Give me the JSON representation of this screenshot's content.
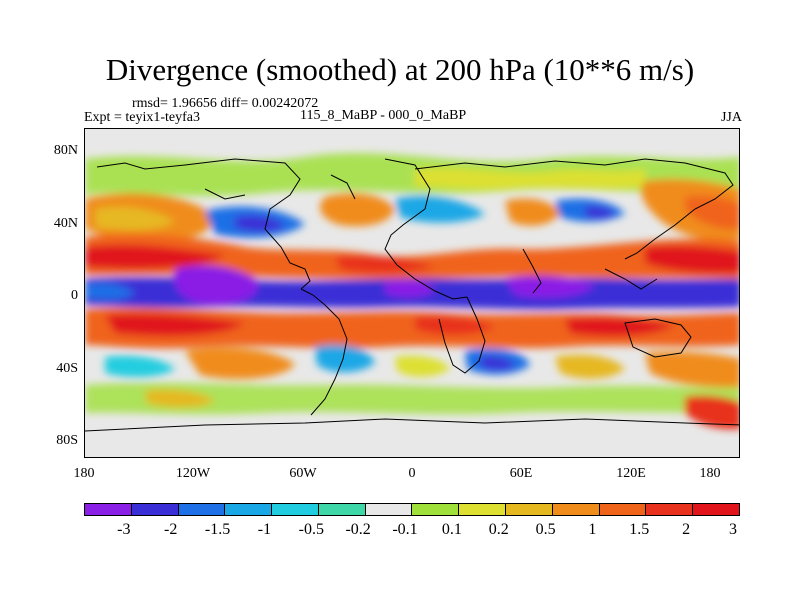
{
  "title": "Divergence (smoothed) at 200 hPa (10**6 m/s)",
  "stats_line": "rmsd= 1.96656 diff= 0.00242072",
  "experiment": "Expt = teyix1-teyfa3",
  "comparison": "115_8_MaBP - 000_0_MaBP",
  "season": "JJA",
  "lat_labels": [
    "80N",
    "40N",
    "0",
    "40S",
    "80S"
  ],
  "lon_labels": [
    "180",
    "120W",
    "60W",
    "0",
    "60E",
    "120E",
    "180"
  ],
  "colorbar": {
    "colors": [
      "#8a1fe6",
      "#3a2fd6",
      "#1f6fe6",
      "#1aa7e6",
      "#20cde0",
      "#3ed8a8",
      "#e8e8e8",
      "#9fe03a",
      "#dde030",
      "#e6b820",
      "#f08c1a",
      "#f0641a",
      "#e8321e",
      "#e0141a"
    ],
    "labels": [
      "-3",
      "-2",
      "-1.5",
      "-1",
      "-0.5",
      "-0.2",
      "-0.1",
      "0.1",
      "0.2",
      "0.5",
      "1",
      "1.5",
      "2",
      "3"
    ]
  }
}
